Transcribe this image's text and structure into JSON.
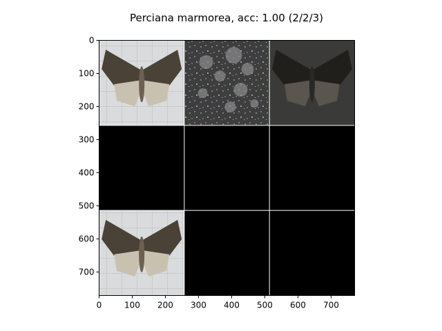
{
  "chart_data": {
    "type": "image-grid",
    "title": "Perciana marmorea, acc: 1.00 (2/2/3)",
    "xlim": [
      0,
      771
    ],
    "ylim": [
      771,
      0
    ],
    "x_ticks": [
      0,
      100,
      200,
      300,
      400,
      500,
      600,
      700
    ],
    "y_ticks": [
      0,
      100,
      200,
      300,
      400,
      500,
      600,
      700
    ],
    "grid": {
      "rows": 3,
      "cols": 3,
      "cell_size": 257
    },
    "cells": [
      {
        "row": 0,
        "col": 0,
        "content": "moth-photo"
      },
      {
        "row": 0,
        "col": 1,
        "content": "noisy-reconstruction"
      },
      {
        "row": 0,
        "col": 2,
        "content": "dark-moth-reconstruction"
      },
      {
        "row": 1,
        "col": 0,
        "content": "black"
      },
      {
        "row": 1,
        "col": 1,
        "content": "black"
      },
      {
        "row": 1,
        "col": 2,
        "content": "black"
      },
      {
        "row": 2,
        "col": 0,
        "content": "moth-photo"
      },
      {
        "row": 2,
        "col": 1,
        "content": "black"
      },
      {
        "row": 2,
        "col": 2,
        "content": "black"
      }
    ]
  }
}
